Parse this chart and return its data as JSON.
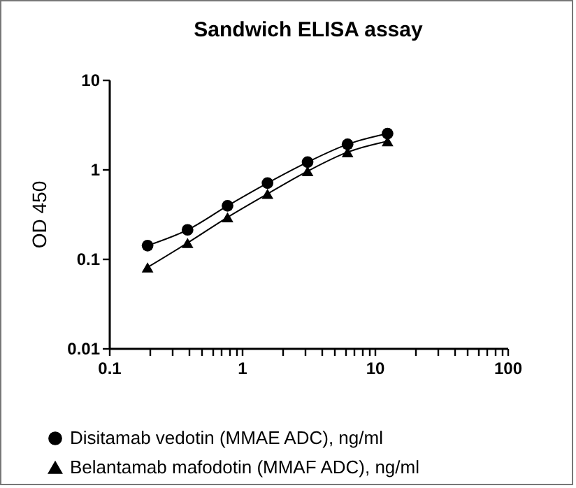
{
  "chart_data": {
    "type": "line",
    "title": "Sandwich ELISA assay",
    "ylabel": "OD 450",
    "log": "xy",
    "x": [
      0.195,
      0.39,
      0.78,
      1.56,
      3.125,
      6.25,
      12.5
    ],
    "series": [
      {
        "name": "Disitamab vedotin (MMAE ADC), ng/ml",
        "color": "#000000",
        "marker": "circle",
        "values": [
          0.14,
          0.21,
          0.39,
          0.7,
          1.2,
          1.9,
          2.5
        ]
      },
      {
        "name": "Belantamab mafodotin (MMAF ADC), ng/ml",
        "color": "#000000",
        "marker": "triangle",
        "values": [
          0.08,
          0.15,
          0.29,
          0.53,
          0.95,
          1.55,
          2.05
        ]
      }
    ],
    "xlim": [
      0.1,
      100
    ],
    "xticks": [
      0.1,
      {
        "value": 0.2,
        "label": null
      },
      {
        "value": 0.3,
        "label": null
      },
      {
        "value": 0.4,
        "label": null
      },
      {
        "value": 0.5,
        "label": null
      },
      {
        "value": 0.6,
        "label": null
      },
      {
        "value": 0.7,
        "label": null
      },
      {
        "value": 0.8,
        "label": null
      },
      {
        "value": 0.9,
        "label": null
      },
      1,
      {
        "value": 2,
        "label": null
      },
      {
        "value": 3,
        "label": null
      },
      {
        "value": 4,
        "label": null
      },
      {
        "value": 5,
        "label": null
      },
      {
        "value": 6,
        "label": null
      },
      {
        "value": 7,
        "label": null
      },
      {
        "value": 8,
        "label": null
      },
      {
        "value": 9,
        "label": null
      },
      10,
      {
        "value": 20,
        "label": null
      },
      {
        "value": 30,
        "label": null
      },
      {
        "value": 40,
        "label": null
      },
      {
        "value": 50,
        "label": null
      },
      {
        "value": 60,
        "label": null
      },
      {
        "value": 70,
        "label": null
      },
      {
        "value": 80,
        "label": null
      },
      {
        "value": 90,
        "label": null
      },
      100
    ],
    "ylim": [
      0.01,
      10
    ],
    "yticks": [
      0.01,
      0.1,
      1,
      10
    ],
    "legend": "bottom",
    "grid": false,
    "line_style": "solid"
  }
}
